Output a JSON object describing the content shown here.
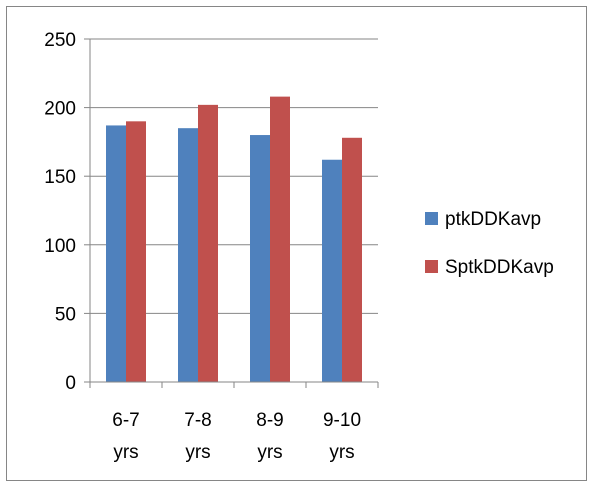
{
  "chart_data": {
    "type": "bar",
    "title": "",
    "xlabel": "",
    "ylabel": "",
    "ylim": [
      0,
      250
    ],
    "yticks": [
      0,
      50,
      100,
      150,
      200,
      250
    ],
    "grid": true,
    "legend_position": "right",
    "categories": [
      {
        "line1": "6-7",
        "line2": "yrs"
      },
      {
        "line1": "7-8",
        "line2": "yrs"
      },
      {
        "line1": "8-9",
        "line2": "yrs"
      },
      {
        "line1": "9-10",
        "line2": "yrs"
      }
    ],
    "series": [
      {
        "name": "ptkDDKavp",
        "color": "#4F81BD",
        "values": [
          187,
          185,
          180,
          162
        ]
      },
      {
        "name": "SptkDDKavp",
        "color": "#C0504D",
        "values": [
          190,
          202,
          208,
          178
        ]
      }
    ]
  }
}
